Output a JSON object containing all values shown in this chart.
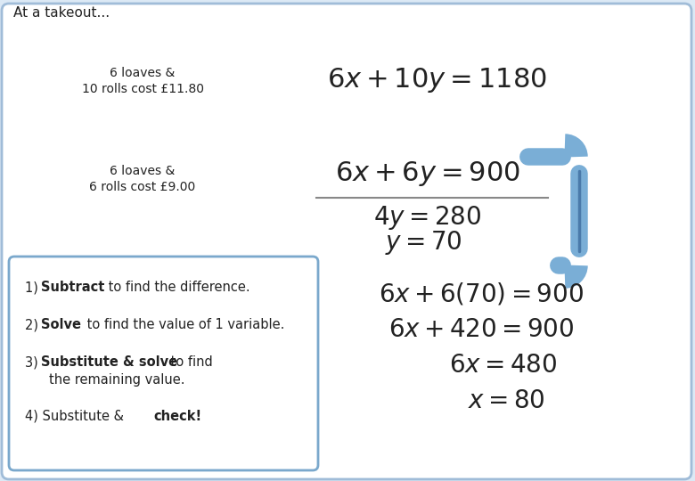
{
  "title": "At a takeout...",
  "bg_color": "#dce9f5",
  "outer_box_color": "#a0bcd8",
  "inner_box_color": "#ffffff",
  "steps_box_bg": "#ffffff",
  "steps_box_edge": "#7aa8cc",
  "text_color": "#222222",
  "eq1_label_line1": "6 loaves &",
  "eq1_label_line2": "10 rolls cost £11.80",
  "eq1_math": "$6x + 10y = 1180$",
  "eq2_label_line1": "6 loaves &",
  "eq2_label_line2": "6 rolls cost £9.00",
  "eq2_math": "$6x + 6y = 900$",
  "result1_math": "$4y = 280$",
  "result2_math": "$y = 70$",
  "sub1_math": "$6x + 6(70) = 900$",
  "sub2_math": "$6x + 420 = 900$",
  "sub3_math": "$6x = 480$",
  "sub4_math": "$x = 80$",
  "arrow_color": "#7aaed6",
  "arrow_edge_color": "#4a7aaa",
  "line_color": "#888888",
  "fontsize_label": 10,
  "fontsize_eq": 22,
  "fontsize_result": 20,
  "fontsize_sub": 20,
  "fontsize_steps": 10.5,
  "fontsize_title": 11
}
